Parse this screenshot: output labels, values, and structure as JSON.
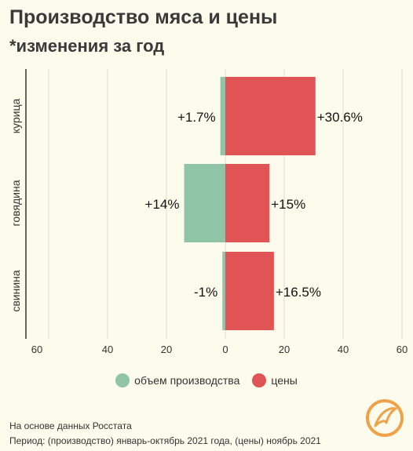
{
  "title": "Производство мяса и цены",
  "subtitle": "*изменения за год",
  "chart_data": {
    "type": "bar",
    "orientation": "horizontal-diverging",
    "categories": [
      "курица",
      "говядина",
      "свинина"
    ],
    "series": [
      {
        "name": "объем производства",
        "color": "#8fc4a6",
        "values": [
          1.7,
          14,
          -1
        ],
        "labels": [
          "+1.7%",
          "+14%",
          "-1%"
        ],
        "direction": "left"
      },
      {
        "name": "цены",
        "color": "#e05455",
        "values": [
          30.6,
          15,
          16.5
        ],
        "labels": [
          "+30.6%",
          "+15%",
          "+16.5%"
        ],
        "direction": "right"
      }
    ],
    "xticks": [
      "60",
      "40",
      "20",
      "0",
      "20",
      "40",
      "60"
    ],
    "xlim": [
      -60,
      60
    ],
    "grid": true,
    "legend": "bottom"
  },
  "footer": {
    "source": "На основе данных Росстата",
    "period": "Период: (производство) январь-октябрь 2021 года, (цены) ноябрь 2021"
  },
  "logo_icon": "bird-circle-logo"
}
